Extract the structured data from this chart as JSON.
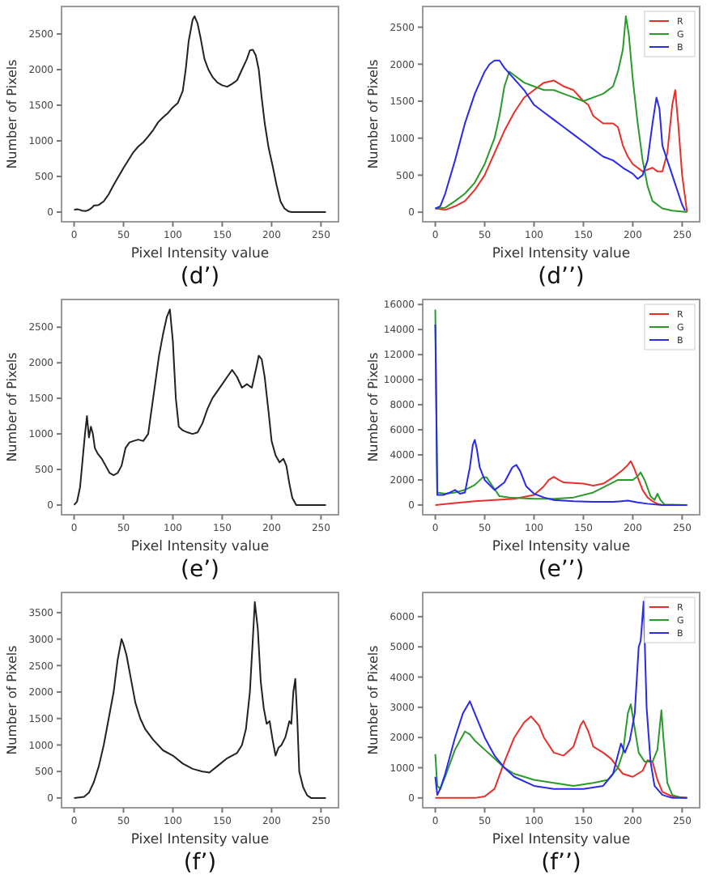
{
  "chart_data": [
    {
      "type": "line",
      "xlabel": "Pixel Intensity value",
      "ylabel": "Number of Pixels",
      "annotations": [
        "(d’)"
      ],
      "xlim": [
        -12.75,
        267.75
      ],
      "ylim": [
        -137,
        2887
      ],
      "xticks": [
        0,
        50,
        100,
        150,
        200,
        250
      ],
      "yticks": [
        0,
        500,
        1000,
        1500,
        2000,
        2500
      ],
      "series": [
        {
          "color": "#222222",
          "x": [
            0,
            3,
            5,
            8,
            12,
            15,
            18,
            20,
            25,
            30,
            35,
            40,
            45,
            50,
            55,
            60,
            65,
            70,
            75,
            80,
            85,
            90,
            95,
            100,
            105,
            110,
            113,
            116,
            120,
            122,
            125,
            128,
            132,
            136,
            140,
            145,
            150,
            155,
            160,
            165,
            170,
            175,
            178,
            181,
            184,
            187,
            190,
            193,
            197,
            201,
            205,
            209,
            213,
            217,
            220,
            255
          ],
          "values": [
            30,
            40,
            35,
            20,
            15,
            30,
            60,
            90,
            100,
            150,
            250,
            380,
            500,
            620,
            730,
            840,
            920,
            980,
            1060,
            1150,
            1260,
            1330,
            1390,
            1470,
            1530,
            1700,
            2000,
            2400,
            2700,
            2750,
            2650,
            2450,
            2150,
            2000,
            1900,
            1820,
            1780,
            1760,
            1800,
            1850,
            2000,
            2150,
            2270,
            2280,
            2200,
            2000,
            1600,
            1250,
            900,
            650,
            380,
            150,
            50,
            10,
            0,
            0
          ]
        }
      ]
    },
    {
      "type": "line",
      "xlabel": "Pixel Intensity value",
      "ylabel": "Number of Pixels",
      "annotations": [
        "(d’’)"
      ],
      "legend": "top right",
      "xlim": [
        -12.75,
        267.75
      ],
      "ylim": [
        -130,
        2780
      ],
      "xticks": [
        0,
        50,
        100,
        150,
        200,
        250
      ],
      "yticks": [
        0,
        500,
        1000,
        1500,
        2000,
        2500
      ],
      "series": [
        {
          "name": "R",
          "color": "#e8302a",
          "x": [
            0,
            10,
            20,
            30,
            40,
            50,
            60,
            70,
            80,
            90,
            100,
            110,
            120,
            130,
            140,
            150,
            155,
            160,
            170,
            180,
            185,
            190,
            195,
            200,
            210,
            220,
            225,
            230,
            235,
            240,
            243,
            246,
            250,
            253,
            255
          ],
          "values": [
            50,
            30,
            80,
            150,
            300,
            500,
            800,
            1100,
            1350,
            1550,
            1650,
            1750,
            1780,
            1700,
            1650,
            1500,
            1450,
            1300,
            1200,
            1200,
            1150,
            900,
            750,
            650,
            550,
            600,
            550,
            550,
            800,
            1450,
            1650,
            1200,
            500,
            200,
            0
          ]
        },
        {
          "name": "G",
          "color": "#2a9a2a",
          "x": [
            0,
            10,
            20,
            30,
            40,
            50,
            60,
            65,
            70,
            75,
            80,
            90,
            100,
            110,
            120,
            130,
            140,
            150,
            160,
            170,
            180,
            185,
            190,
            193,
            196,
            200,
            205,
            210,
            215,
            220,
            230,
            240,
            255
          ],
          "values": [
            50,
            60,
            150,
            250,
            400,
            650,
            1000,
            1300,
            1700,
            1900,
            1850,
            1750,
            1700,
            1650,
            1650,
            1600,
            1550,
            1500,
            1550,
            1600,
            1700,
            1900,
            2200,
            2650,
            2400,
            1800,
            1200,
            700,
            350,
            150,
            50,
            20,
            0
          ]
        },
        {
          "name": "B",
          "color": "#2a2ae8",
          "x": [
            0,
            5,
            10,
            20,
            30,
            40,
            50,
            55,
            60,
            65,
            70,
            80,
            90,
            100,
            110,
            120,
            130,
            140,
            150,
            160,
            170,
            180,
            190,
            200,
            205,
            210,
            215,
            220,
            224,
            227,
            230,
            235,
            240,
            245,
            250,
            253
          ],
          "values": [
            50,
            80,
            250,
            700,
            1200,
            1600,
            1900,
            2000,
            2050,
            2050,
            1950,
            1800,
            1650,
            1450,
            1350,
            1250,
            1150,
            1050,
            950,
            850,
            750,
            700,
            600,
            520,
            450,
            500,
            700,
            1200,
            1550,
            1400,
            900,
            700,
            500,
            300,
            100,
            20
          ]
        }
      ]
    },
    {
      "type": "line",
      "xlabel": "Pixel Intensity value",
      "ylabel": "Number of Pixels",
      "annotations": [
        "(e’)"
      ],
      "xlim": [
        -12.75,
        267.75
      ],
      "ylim": [
        -137,
        2890
      ],
      "xticks": [
        0,
        50,
        100,
        150,
        200,
        250
      ],
      "yticks": [
        0,
        500,
        1000,
        1500,
        2000,
        2500
      ],
      "series": [
        {
          "color": "#222222",
          "x": [
            0,
            3,
            6,
            9,
            11,
            13,
            15,
            17,
            19,
            21,
            24,
            28,
            32,
            36,
            40,
            44,
            48,
            52,
            56,
            60,
            65,
            70,
            75,
            78,
            82,
            86,
            90,
            94,
            97,
            100,
            103,
            106,
            110,
            115,
            120,
            125,
            130,
            135,
            140,
            145,
            150,
            155,
            160,
            165,
            170,
            175,
            180,
            184,
            187,
            190,
            193,
            197,
            200,
            204,
            208,
            212,
            215,
            218,
            221,
            225,
            255
          ],
          "values": [
            0,
            50,
            250,
            700,
            1000,
            1250,
            950,
            1100,
            1000,
            800,
            720,
            650,
            550,
            450,
            420,
            450,
            550,
            800,
            880,
            900,
            920,
            900,
            1000,
            1300,
            1700,
            2100,
            2400,
            2650,
            2750,
            2300,
            1500,
            1100,
            1050,
            1020,
            1000,
            1020,
            1150,
            1350,
            1500,
            1600,
            1700,
            1800,
            1900,
            1800,
            1650,
            1700,
            1650,
            1900,
            2100,
            2050,
            1800,
            1300,
            900,
            700,
            600,
            650,
            550,
            300,
            100,
            0,
            0
          ]
        }
      ]
    },
    {
      "type": "line",
      "xlabel": "Pixel Intensity value",
      "ylabel": "Number of Pixels",
      "annotations": [
        "(e’’)"
      ],
      "legend": "top right",
      "xlim": [
        -12.75,
        267.75
      ],
      "ylim": [
        -780,
        16400
      ],
      "xticks": [
        0,
        50,
        100,
        150,
        200,
        250
      ],
      "yticks": [
        0,
        2000,
        4000,
        6000,
        8000,
        10000,
        12000,
        14000,
        16000
      ],
      "series": [
        {
          "name": "R",
          "color": "#e8302a",
          "x": [
            0,
            20,
            40,
            60,
            80,
            100,
            110,
            115,
            120,
            125,
            130,
            140,
            150,
            160,
            170,
            180,
            190,
            195,
            198,
            201,
            205,
            210,
            215,
            220,
            225,
            230,
            255
          ],
          "values": [
            0,
            150,
            300,
            400,
            500,
            800,
            1500,
            2000,
            2250,
            2000,
            1800,
            1750,
            1700,
            1550,
            1700,
            2200,
            2800,
            3200,
            3500,
            3000,
            2200,
            1200,
            600,
            300,
            100,
            0,
            0
          ]
        },
        {
          "name": "G",
          "color": "#2a9a2a",
          "x": [
            0,
            2,
            10,
            20,
            30,
            40,
            48,
            52,
            58,
            65,
            75,
            100,
            120,
            140,
            160,
            175,
            185,
            195,
            200,
            205,
            208,
            212,
            218,
            222,
            225,
            228,
            232,
            255
          ],
          "values": [
            15600,
            1000,
            900,
            1000,
            1200,
            1600,
            2200,
            2200,
            1500,
            700,
            600,
            500,
            500,
            600,
            1000,
            1600,
            2000,
            2000,
            2000,
            2300,
            2600,
            2000,
            700,
            400,
            900,
            400,
            50,
            0
          ]
        },
        {
          "name": "B",
          "color": "#2a2ae8",
          "x": [
            0,
            2,
            8,
            15,
            20,
            25,
            30,
            35,
            38,
            40,
            42,
            45,
            50,
            60,
            70,
            78,
            82,
            86,
            92,
            100,
            110,
            120,
            140,
            160,
            180,
            195,
            205,
            215,
            230,
            255
          ],
          "values": [
            14400,
            800,
            800,
            1000,
            1200,
            900,
            1000,
            3000,
            4800,
            5200,
            4500,
            3000,
            2000,
            1200,
            1800,
            3000,
            3200,
            2700,
            1500,
            900,
            600,
            400,
            300,
            250,
            250,
            350,
            200,
            100,
            0,
            0
          ]
        }
      ]
    },
    {
      "type": "line",
      "xlabel": "Pixel Intensity value",
      "ylabel": "Number of Pixels",
      "annotations": [
        "(f’)"
      ],
      "xlim": [
        -12.75,
        267.75
      ],
      "ylim": [
        -185,
        3880
      ],
      "xticks": [
        0,
        50,
        100,
        150,
        200,
        250
      ],
      "yticks": [
        0,
        500,
        1000,
        1500,
        2000,
        2500,
        3000,
        3500
      ],
      "series": [
        {
          "color": "#222222",
          "x": [
            0,
            10,
            15,
            20,
            25,
            30,
            35,
            40,
            44,
            48,
            50,
            53,
            57,
            62,
            67,
            72,
            80,
            90,
            100,
            110,
            120,
            130,
            137,
            145,
            155,
            165,
            170,
            174,
            178,
            181,
            183,
            186,
            189,
            192,
            195,
            198,
            201,
            204,
            207,
            210,
            214,
            218,
            220,
            222,
            224,
            226,
            228,
            232,
            236,
            240,
            255
          ],
          "values": [
            0,
            20,
            100,
            300,
            600,
            1000,
            1500,
            2000,
            2600,
            3000,
            2900,
            2700,
            2300,
            1800,
            1500,
            1300,
            1100,
            900,
            800,
            650,
            550,
            500,
            480,
            600,
            750,
            850,
            1000,
            1300,
            2000,
            3000,
            3700,
            3200,
            2200,
            1700,
            1400,
            1450,
            1100,
            800,
            950,
            1000,
            1150,
            1450,
            1400,
            2000,
            2250,
            1500,
            500,
            200,
            50,
            0,
            0
          ]
        }
      ]
    },
    {
      "type": "line",
      "xlabel": "Pixel Intensity value",
      "ylabel": "Number of Pixels",
      "annotations": [
        "(f’’)"
      ],
      "legend": "top right",
      "xlim": [
        -12.75,
        267.75
      ],
      "ylim": [
        -325,
        6800
      ],
      "xticks": [
        0,
        50,
        100,
        150,
        200,
        250
      ],
      "yticks": [
        0,
        1000,
        2000,
        3000,
        4000,
        5000,
        6000
      ],
      "series": [
        {
          "name": "R",
          "color": "#e8302a",
          "x": [
            0,
            40,
            50,
            60,
            70,
            80,
            90,
            97,
            105,
            110,
            120,
            130,
            140,
            147,
            150,
            155,
            160,
            170,
            178,
            185,
            190,
            200,
            210,
            215,
            220,
            225,
            230,
            240,
            255
          ],
          "values": [
            0,
            0,
            50,
            300,
            1200,
            2000,
            2500,
            2700,
            2400,
            2000,
            1500,
            1400,
            1700,
            2400,
            2550,
            2200,
            1700,
            1500,
            1300,
            1000,
            800,
            700,
            900,
            1250,
            1200,
            600,
            200,
            50,
            0
          ]
        },
        {
          "name": "G",
          "color": "#2a9a2a",
          "x": [
            0,
            2,
            5,
            10,
            20,
            30,
            35,
            40,
            50,
            60,
            70,
            80,
            100,
            120,
            140,
            160,
            175,
            185,
            190,
            195,
            198,
            202,
            206,
            212,
            220,
            225,
            229,
            231,
            235,
            240,
            250,
            255
          ],
          "values": [
            1450,
            400,
            300,
            700,
            1600,
            2200,
            2100,
            1900,
            1600,
            1300,
            1000,
            800,
            600,
            500,
            400,
            500,
            600,
            1000,
            1500,
            2800,
            3100,
            2300,
            1500,
            1200,
            1200,
            1600,
            2900,
            2000,
            500,
            100,
            0,
            0
          ]
        },
        {
          "name": "B",
          "color": "#2a2ae8",
          "x": [
            0,
            2,
            5,
            10,
            20,
            28,
            35,
            40,
            50,
            60,
            70,
            80,
            100,
            120,
            150,
            170,
            180,
            188,
            192,
            197,
            202,
            206,
            208,
            211,
            214,
            218,
            222,
            230,
            240,
            255
          ],
          "values": [
            700,
            100,
            300,
            800,
            2000,
            2800,
            3200,
            2800,
            2000,
            1400,
            1000,
            700,
            400,
            300,
            300,
            400,
            800,
            1800,
            1500,
            1900,
            2800,
            5000,
            5200,
            6500,
            3000,
            1200,
            400,
            100,
            0,
            0
          ]
        }
      ]
    }
  ]
}
